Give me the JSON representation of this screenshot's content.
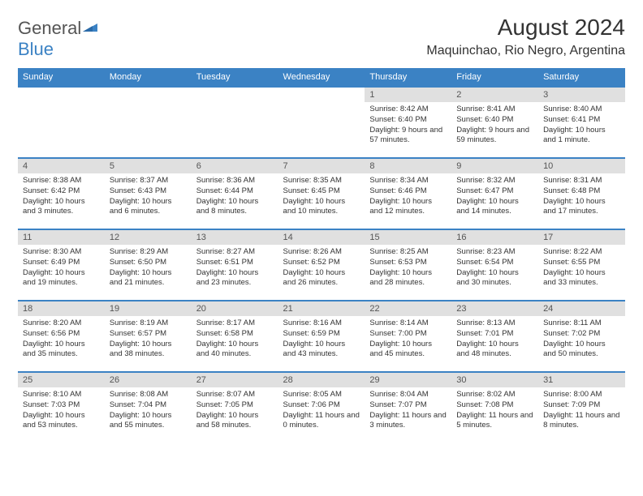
{
  "brand": {
    "part1": "General",
    "part2": "Blue",
    "color_main": "#555555",
    "color_accent": "#3b82c4"
  },
  "title": "August 2024",
  "location": "Maquinchao, Rio Negro, Argentina",
  "colors": {
    "header_bg": "#3b82c4",
    "header_text": "#ffffff",
    "daynum_bg": "#e0e0e0",
    "daynum_text": "#555555",
    "body_text": "#333333",
    "row_border": "#3b82c4",
    "page_bg": "#ffffff"
  },
  "columns": [
    "Sunday",
    "Monday",
    "Tuesday",
    "Wednesday",
    "Thursday",
    "Friday",
    "Saturday"
  ],
  "weeks": [
    [
      {
        "n": "",
        "sr": "",
        "ss": "",
        "dl": ""
      },
      {
        "n": "",
        "sr": "",
        "ss": "",
        "dl": ""
      },
      {
        "n": "",
        "sr": "",
        "ss": "",
        "dl": ""
      },
      {
        "n": "",
        "sr": "",
        "ss": "",
        "dl": ""
      },
      {
        "n": "1",
        "sr": "Sunrise: 8:42 AM",
        "ss": "Sunset: 6:40 PM",
        "dl": "Daylight: 9 hours and 57 minutes."
      },
      {
        "n": "2",
        "sr": "Sunrise: 8:41 AM",
        "ss": "Sunset: 6:40 PM",
        "dl": "Daylight: 9 hours and 59 minutes."
      },
      {
        "n": "3",
        "sr": "Sunrise: 8:40 AM",
        "ss": "Sunset: 6:41 PM",
        "dl": "Daylight: 10 hours and 1 minute."
      }
    ],
    [
      {
        "n": "4",
        "sr": "Sunrise: 8:38 AM",
        "ss": "Sunset: 6:42 PM",
        "dl": "Daylight: 10 hours and 3 minutes."
      },
      {
        "n": "5",
        "sr": "Sunrise: 8:37 AM",
        "ss": "Sunset: 6:43 PM",
        "dl": "Daylight: 10 hours and 6 minutes."
      },
      {
        "n": "6",
        "sr": "Sunrise: 8:36 AM",
        "ss": "Sunset: 6:44 PM",
        "dl": "Daylight: 10 hours and 8 minutes."
      },
      {
        "n": "7",
        "sr": "Sunrise: 8:35 AM",
        "ss": "Sunset: 6:45 PM",
        "dl": "Daylight: 10 hours and 10 minutes."
      },
      {
        "n": "8",
        "sr": "Sunrise: 8:34 AM",
        "ss": "Sunset: 6:46 PM",
        "dl": "Daylight: 10 hours and 12 minutes."
      },
      {
        "n": "9",
        "sr": "Sunrise: 8:32 AM",
        "ss": "Sunset: 6:47 PM",
        "dl": "Daylight: 10 hours and 14 minutes."
      },
      {
        "n": "10",
        "sr": "Sunrise: 8:31 AM",
        "ss": "Sunset: 6:48 PM",
        "dl": "Daylight: 10 hours and 17 minutes."
      }
    ],
    [
      {
        "n": "11",
        "sr": "Sunrise: 8:30 AM",
        "ss": "Sunset: 6:49 PM",
        "dl": "Daylight: 10 hours and 19 minutes."
      },
      {
        "n": "12",
        "sr": "Sunrise: 8:29 AM",
        "ss": "Sunset: 6:50 PM",
        "dl": "Daylight: 10 hours and 21 minutes."
      },
      {
        "n": "13",
        "sr": "Sunrise: 8:27 AM",
        "ss": "Sunset: 6:51 PM",
        "dl": "Daylight: 10 hours and 23 minutes."
      },
      {
        "n": "14",
        "sr": "Sunrise: 8:26 AM",
        "ss": "Sunset: 6:52 PM",
        "dl": "Daylight: 10 hours and 26 minutes."
      },
      {
        "n": "15",
        "sr": "Sunrise: 8:25 AM",
        "ss": "Sunset: 6:53 PM",
        "dl": "Daylight: 10 hours and 28 minutes."
      },
      {
        "n": "16",
        "sr": "Sunrise: 8:23 AM",
        "ss": "Sunset: 6:54 PM",
        "dl": "Daylight: 10 hours and 30 minutes."
      },
      {
        "n": "17",
        "sr": "Sunrise: 8:22 AM",
        "ss": "Sunset: 6:55 PM",
        "dl": "Daylight: 10 hours and 33 minutes."
      }
    ],
    [
      {
        "n": "18",
        "sr": "Sunrise: 8:20 AM",
        "ss": "Sunset: 6:56 PM",
        "dl": "Daylight: 10 hours and 35 minutes."
      },
      {
        "n": "19",
        "sr": "Sunrise: 8:19 AM",
        "ss": "Sunset: 6:57 PM",
        "dl": "Daylight: 10 hours and 38 minutes."
      },
      {
        "n": "20",
        "sr": "Sunrise: 8:17 AM",
        "ss": "Sunset: 6:58 PM",
        "dl": "Daylight: 10 hours and 40 minutes."
      },
      {
        "n": "21",
        "sr": "Sunrise: 8:16 AM",
        "ss": "Sunset: 6:59 PM",
        "dl": "Daylight: 10 hours and 43 minutes."
      },
      {
        "n": "22",
        "sr": "Sunrise: 8:14 AM",
        "ss": "Sunset: 7:00 PM",
        "dl": "Daylight: 10 hours and 45 minutes."
      },
      {
        "n": "23",
        "sr": "Sunrise: 8:13 AM",
        "ss": "Sunset: 7:01 PM",
        "dl": "Daylight: 10 hours and 48 minutes."
      },
      {
        "n": "24",
        "sr": "Sunrise: 8:11 AM",
        "ss": "Sunset: 7:02 PM",
        "dl": "Daylight: 10 hours and 50 minutes."
      }
    ],
    [
      {
        "n": "25",
        "sr": "Sunrise: 8:10 AM",
        "ss": "Sunset: 7:03 PM",
        "dl": "Daylight: 10 hours and 53 minutes."
      },
      {
        "n": "26",
        "sr": "Sunrise: 8:08 AM",
        "ss": "Sunset: 7:04 PM",
        "dl": "Daylight: 10 hours and 55 minutes."
      },
      {
        "n": "27",
        "sr": "Sunrise: 8:07 AM",
        "ss": "Sunset: 7:05 PM",
        "dl": "Daylight: 10 hours and 58 minutes."
      },
      {
        "n": "28",
        "sr": "Sunrise: 8:05 AM",
        "ss": "Sunset: 7:06 PM",
        "dl": "Daylight: 11 hours and 0 minutes."
      },
      {
        "n": "29",
        "sr": "Sunrise: 8:04 AM",
        "ss": "Sunset: 7:07 PM",
        "dl": "Daylight: 11 hours and 3 minutes."
      },
      {
        "n": "30",
        "sr": "Sunrise: 8:02 AM",
        "ss": "Sunset: 7:08 PM",
        "dl": "Daylight: 11 hours and 5 minutes."
      },
      {
        "n": "31",
        "sr": "Sunrise: 8:00 AM",
        "ss": "Sunset: 7:09 PM",
        "dl": "Daylight: 11 hours and 8 minutes."
      }
    ]
  ]
}
